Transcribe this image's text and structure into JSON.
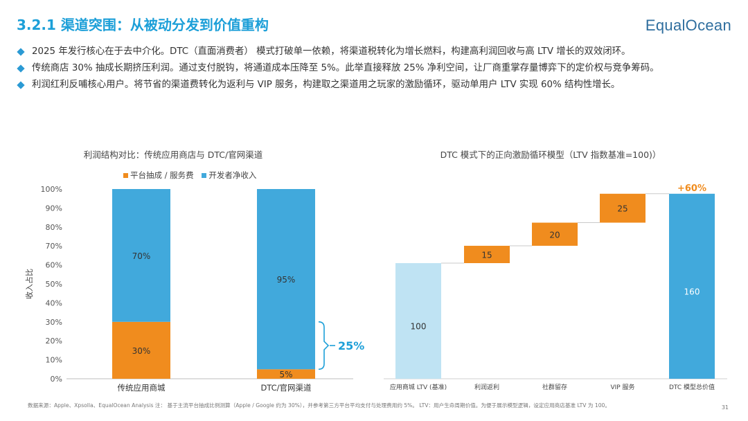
{
  "header": {
    "title": "3.2.1 渠道突围：从被动分发到价值重构",
    "logo": "EqualOcean"
  },
  "bullets": [
    "2025 年发行核心在于去中介化。DTC（直面消费者） 模式打破单一依赖，将渠道税转化为增长燃料，构建高利润回收与高 LTV 增长的双效闭环。",
    "传统商店 30% 抽成长期挤压利润。通过支付脱钩，将通道成本压降至 5%。此举直接释放 25% 净利空间，让厂商重掌存量博弈下的定价权与竞争筹码。",
    "利润红利反哺核心用户。将节省的渠道费转化为返利与 VIP 服务，构建取之渠道用之玩家的激励循环，驱动单用户 LTV 实现 60% 结构性增长。"
  ],
  "colors": {
    "accent": "#1c9fd8",
    "orange": "#f08c1e",
    "blue": "#41a9dc",
    "light_blue": "#bfe3f3"
  },
  "chart_data": [
    {
      "type": "bar",
      "stacked": true,
      "title": "利润结构对比：传统应用商店与 DTC/官网渠道",
      "categories": [
        "传统应用商城",
        "DTC/官网渠道"
      ],
      "series": [
        {
          "name": "平台抽成 / 服务费",
          "values": [
            30,
            5
          ],
          "labels": [
            "30%",
            "5%"
          ],
          "color": "#f08c1e"
        },
        {
          "name": "开发者净收入",
          "values": [
            70,
            95
          ],
          "labels": [
            "70%",
            "95%"
          ],
          "color": "#41a9dc"
        }
      ],
      "ylabel": "收入占比",
      "yticks": [
        "0%",
        "10%",
        "20%",
        "30%",
        "40%",
        "50%",
        "60%",
        "70%",
        "80%",
        "90%",
        "100%"
      ],
      "ylim": [
        0,
        100
      ],
      "legend_position": "top",
      "annotation": "25%"
    },
    {
      "type": "bar",
      "subtype": "waterfall",
      "title": "DTC 模式下的正向激励循环模型（LTV 指数基准=100)）",
      "categories": [
        "应用商城 LTV (基准)",
        "利润返利",
        "社群留存",
        "VIP 服务",
        "DTC 模型总价值"
      ],
      "values": [
        100,
        15,
        20,
        25,
        160
      ],
      "labels": [
        "100",
        "15",
        "20",
        "25",
        "160"
      ],
      "kinds": [
        "base",
        "delta",
        "delta",
        "delta",
        "total"
      ],
      "annotation": "+60%"
    }
  ],
  "footer": {
    "source": "数据来源：Apple、Xpsolla、EqualOcean Analysis 注： 基于主流平台抽成比例测算（Apple / Google 约为 30%），并参考第三方平台平均支付与处理费用约 5%。 LTV：用户生命周期价值。为便于展示模型逻辑，设定应用商店基准 LTV 为 100。",
    "page": "31"
  }
}
